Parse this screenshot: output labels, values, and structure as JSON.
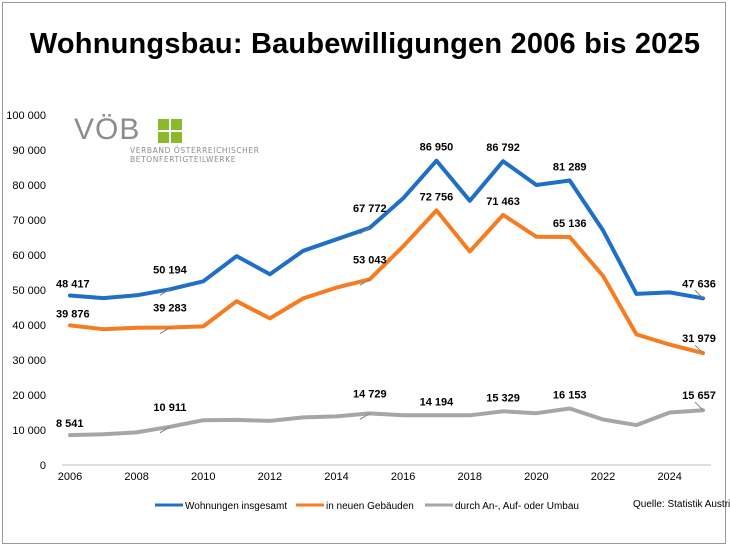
{
  "title": "Wohnungsbau: Baubewilligungen 2006 bis 2025",
  "logo": {
    "wordmark": "VÖB",
    "line1": "VERBAND ÖSTERREICHISCHER",
    "line2": "BETONFERTIGTEILWERKE",
    "icon": "four-squares-logo-icon",
    "color": "#8ab92d"
  },
  "source": "Quelle: Statistik Austria",
  "chart_data": {
    "type": "line",
    "title": "Wohnungsbau: Baubewilligungen 2006 bis 2025",
    "xlabel": "",
    "ylabel": "",
    "x": [
      2006,
      2007,
      2008,
      2009,
      2010,
      2011,
      2012,
      2013,
      2014,
      2015,
      2016,
      2017,
      2018,
      2019,
      2020,
      2021,
      2022,
      2023,
      2024,
      2025
    ],
    "x_tick_labels": [
      "2006",
      "2008",
      "2010",
      "2012",
      "2014",
      "2016",
      "2018",
      "2020",
      "2022",
      "2024"
    ],
    "ylim": [
      0,
      100000
    ],
    "y_tick_labels": [
      "0",
      "10 000",
      "20 000",
      "30 000",
      "40 000",
      "50 000",
      "60 000",
      "70 000",
      "80 000",
      "90 000",
      "100 000"
    ],
    "grid": false,
    "legend_position": "bottom",
    "series": [
      {
        "name": "Wohnungen insgesamt",
        "color": "#1f6fc6",
        "values": [
          48417,
          47700,
          48500,
          50194,
          52500,
          59700,
          54500,
          61200,
          64500,
          67772,
          76200,
          86950,
          75500,
          86792,
          80000,
          81289,
          67000,
          48900,
          49300,
          47636
        ],
        "labels": [
          {
            "i": 0,
            "text": "48 417"
          },
          {
            "i": 3,
            "text": "50 194"
          },
          {
            "i": 9,
            "text": "67 772"
          },
          {
            "i": 11,
            "text": "86 950"
          },
          {
            "i": 13,
            "text": "86 792"
          },
          {
            "i": 15,
            "text": "81 289"
          },
          {
            "i": 19,
            "text": "47 636"
          }
        ]
      },
      {
        "name": "in neuen Gebäuden",
        "color": "#f57c20",
        "values": [
          39876,
          38800,
          39200,
          39283,
          39600,
          46800,
          41900,
          47600,
          50700,
          53043,
          62500,
          72756,
          61000,
          71463,
          65200,
          65136,
          54000,
          37300,
          34400,
          31979
        ],
        "labels": [
          {
            "i": 0,
            "text": "39 876"
          },
          {
            "i": 3,
            "text": "39 283"
          },
          {
            "i": 9,
            "text": "53 043"
          },
          {
            "i": 11,
            "text": "72 756"
          },
          {
            "i": 13,
            "text": "71 463"
          },
          {
            "i": 15,
            "text": "65 136"
          },
          {
            "i": 19,
            "text": "31 979"
          }
        ]
      },
      {
        "name": "durch An-, Auf- oder Umbau",
        "color": "#a6a6a6",
        "values": [
          8541,
          8800,
          9300,
          10911,
          12800,
          12900,
          12600,
          13600,
          13900,
          14729,
          14200,
          14194,
          14200,
          15329,
          14800,
          16153,
          13000,
          11400,
          15000,
          15657
        ],
        "labels": [
          {
            "i": 0,
            "text": "8 541"
          },
          {
            "i": 3,
            "text": "10 911"
          },
          {
            "i": 9,
            "text": "14 729"
          },
          {
            "i": 11,
            "text": "14 194"
          },
          {
            "i": 13,
            "text": "15 329"
          },
          {
            "i": 15,
            "text": "16 153"
          },
          {
            "i": 19,
            "text": "15 657"
          }
        ]
      }
    ]
  }
}
